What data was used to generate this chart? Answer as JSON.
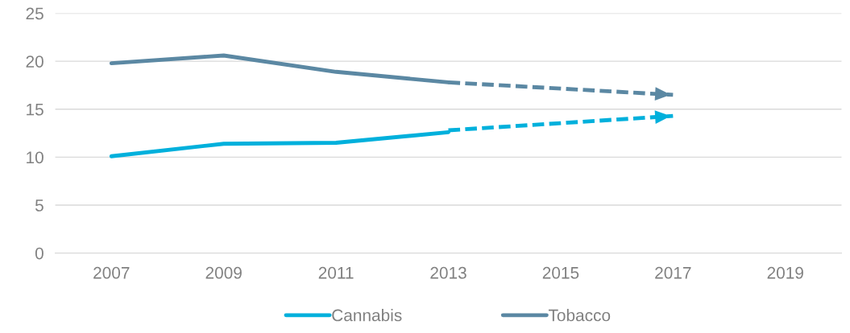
{
  "chart_data": {
    "type": "line",
    "categories": [
      "2007",
      "2009",
      "2011",
      "2013",
      "2015",
      "2017",
      "2019"
    ],
    "series": [
      {
        "name": "Cannabis",
        "color": "#00b0dc",
        "values": [
          10.1,
          11.4,
          11.5,
          12.6,
          null,
          null,
          null
        ]
      },
      {
        "name": "Tobacco",
        "color": "#5b88a3",
        "values": [
          19.8,
          20.6,
          18.9,
          17.8,
          null,
          null,
          null
        ]
      },
      {
        "color": "#00b0dc",
        "line_style": "dashed",
        "values": [
          null,
          null,
          null,
          12.8,
          null,
          14.3,
          null
        ]
      },
      {
        "color": "#5b88a3",
        "line_style": "dashed",
        "values": [
          null,
          null,
          null,
          17.8,
          null,
          16.5,
          null
        ]
      }
    ],
    "ylim": [
      0,
      25
    ],
    "yticks": [
      0,
      5,
      10,
      15,
      20,
      25
    ],
    "grid": "y",
    "legend": "bottom"
  }
}
